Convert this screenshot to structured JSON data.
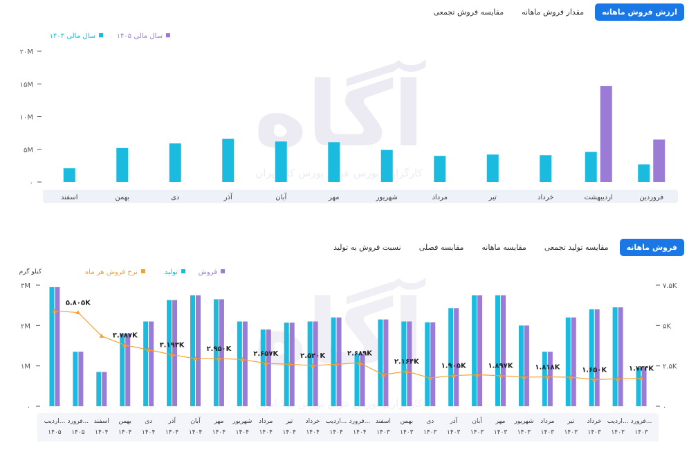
{
  "colors": {
    "cyan": "#1bbbe0",
    "purple": "#9a7bd6",
    "orange": "#f5a033",
    "accent": "#1977e6",
    "axis_band": "#eef1f7"
  },
  "tabs_top": [
    {
      "label": "ارزش فروش ماهانه",
      "active": true
    },
    {
      "label": "مقدار فروش ماهانه",
      "active": false
    },
    {
      "label": "مقایسه فروش تجمعی",
      "active": false
    }
  ],
  "tabs_bottom": [
    {
      "label": "فروش ماهانه",
      "active": true
    },
    {
      "label": "مقایسه تولید تجمعی",
      "active": false
    },
    {
      "label": "مقایسه ماهانه",
      "active": false
    },
    {
      "label": "مقایسه فصلی",
      "active": false
    },
    {
      "label": "نسبت فروش به تولید",
      "active": false
    }
  ],
  "watermark": {
    "text": "آگاه",
    "tagline": "کارگزاری بورس عراق بورس کالا ایران"
  },
  "chart_data": [
    {
      "type": "bar",
      "categories": [
        "فروردین",
        "اردیبهشت",
        "خرداد",
        "تیر",
        "مرداد",
        "شهریور",
        "مهر",
        "آبان",
        "آذر",
        "دی",
        "بهمن",
        "اسفند"
      ],
      "series": [
        {
          "name": "سال مالی ۱۴۰۴",
          "color": "#1bbbe0",
          "values": [
            2.7,
            4.6,
            4.1,
            4.2,
            4.0,
            4.9,
            6.1,
            6.2,
            6.6,
            5.9,
            5.2,
            2.1
          ]
        },
        {
          "name": "سال مالی ۱۴۰۵",
          "color": "#9a7bd6",
          "values": [
            6.5,
            14.7,
            null,
            null,
            null,
            null,
            null,
            null,
            null,
            null,
            null,
            null
          ]
        }
      ],
      "ylim": [
        0,
        20
      ],
      "y_ticks": [
        "۰",
        "۵M",
        "۱۰M",
        "۱۵M",
        "۲۰M"
      ],
      "legend_position": "top-left",
      "grid": false,
      "direction": "rtl"
    },
    {
      "type": "bar",
      "categories": [
        [
          "فرورد...",
          "۱۴۰۳"
        ],
        [
          "اردیب...",
          "۱۴۰۳"
        ],
        [
          "خرداد",
          "۱۴۰۳"
        ],
        [
          "تیر",
          "۱۴۰۳"
        ],
        [
          "مرداد",
          "۱۴۰۳"
        ],
        [
          "شهریور",
          "۱۴۰۳"
        ],
        [
          "مهر",
          "۱۴۰۳"
        ],
        [
          "آبان",
          "۱۴۰۳"
        ],
        [
          "آذر",
          "۱۴۰۳"
        ],
        [
          "دی",
          "۱۴۰۳"
        ],
        [
          "بهمن",
          "۱۴۰۳"
        ],
        [
          "اسفند",
          "۱۴۰۳"
        ],
        [
          "فرورد...",
          "۱۴۰۴"
        ],
        [
          "اردیب...",
          "۱۴۰۴"
        ],
        [
          "خرداد",
          "۱۴۰۴"
        ],
        [
          "تیر",
          "۱۴۰۴"
        ],
        [
          "مرداد",
          "۱۴۰۴"
        ],
        [
          "شهریور",
          "۱۴۰۴"
        ],
        [
          "مهر",
          "۱۴۰۴"
        ],
        [
          "آبان",
          "۱۴۰۴"
        ],
        [
          "آذر",
          "۱۴۰۴"
        ],
        [
          "دی",
          "۱۴۰۴"
        ],
        [
          "بهمن",
          "۱۴۰۴"
        ],
        [
          "اسفند",
          "۱۴۰۴"
        ],
        [
          "فرورد...",
          "۱۴۰۵"
        ],
        [
          "اردیب...",
          "۱۴۰۵"
        ]
      ],
      "series": [
        {
          "name": "تولید",
          "color": "#1bbbe0",
          "axis": "left",
          "values": [
            0.95,
            2.45,
            2.4,
            2.2,
            1.35,
            2.0,
            2.75,
            2.75,
            2.43,
            2.08,
            2.1,
            2.15,
            1.3,
            2.2,
            2.1,
            2.07,
            1.9,
            2.1,
            2.65,
            2.75,
            2.63,
            2.1,
            1.8,
            0.85,
            1.35,
            2.95
          ]
        },
        {
          "name": "فروش",
          "color": "#9a7bd6",
          "axis": "left",
          "values": [
            0.95,
            2.45,
            2.4,
            2.2,
            1.35,
            2.0,
            2.75,
            2.75,
            2.43,
            2.08,
            2.1,
            2.15,
            1.3,
            2.2,
            2.1,
            2.07,
            1.9,
            2.1,
            2.65,
            2.75,
            2.63,
            2.1,
            1.8,
            0.85,
            1.35,
            2.95
          ]
        },
        {
          "name": "نرخ فروش هر ماه",
          "color": "#f5a033",
          "axis": "right",
          "type": "line",
          "values": [
            1.733,
            1.7,
            1.65,
            1.8,
            1.818,
            1.8,
            1.897,
            1.95,
            1.905,
            1.75,
            2.164,
            1.95,
            2.689,
            2.6,
            2.52,
            2.6,
            2.657,
            2.9,
            2.95,
            2.95,
            3.193,
            3.5,
            3.787,
            4.35,
            5.805,
            5.9
          ]
        }
      ],
      "data_labels": [
        {
          "index": 0,
          "text": "۱.۷۳۳K"
        },
        {
          "index": 2,
          "text": "۱.۶۵۰K"
        },
        {
          "index": 4,
          "text": "۱.۸۱۸K"
        },
        {
          "index": 6,
          "text": "۱.۸۹۷K"
        },
        {
          "index": 8,
          "text": "۱.۹۰۵K"
        },
        {
          "index": 10,
          "text": "۲.۱۶۴K"
        },
        {
          "index": 12,
          "text": "۲.۶۸۹K"
        },
        {
          "index": 14,
          "text": "۲.۵۲۰K"
        },
        {
          "index": 16,
          "text": "۲.۶۵۷K"
        },
        {
          "index": 18,
          "text": "۲.۹۵۰K"
        },
        {
          "index": 20,
          "text": "۳.۱۹۳K"
        },
        {
          "index": 22,
          "text": "۳.۷۸۷K"
        },
        {
          "index": 24,
          "text": "۵.۸۰۵K"
        }
      ],
      "ylim_left": [
        0,
        3
      ],
      "y_ticks_left": [
        "۰",
        "۱M",
        "۲M",
        "۳M"
      ],
      "ylim_right": [
        0,
        7.5
      ],
      "y_ticks_right": [
        "۰",
        "۲.۵K",
        "۵K",
        "۷.۵K"
      ],
      "ylabel_left": "کیلو گرم",
      "legend_position": "top-left",
      "grid": false,
      "direction": "rtl"
    }
  ]
}
